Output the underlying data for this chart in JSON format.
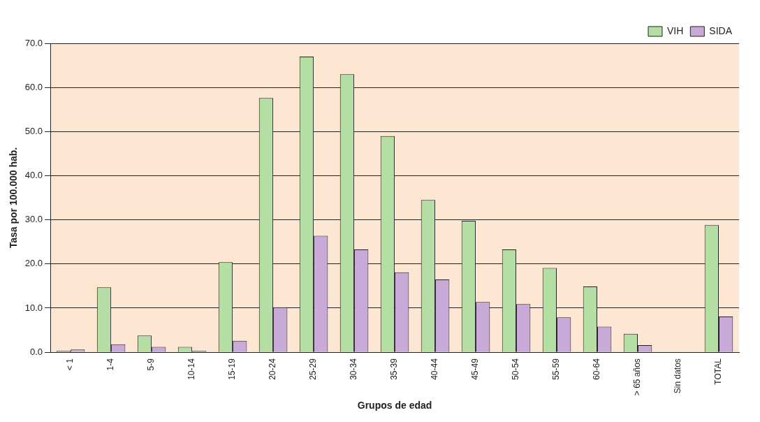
{
  "chart_data": {
    "type": "bar",
    "xlabel": "Grupos de edad",
    "ylabel": "Tasa por 100.000 hab.",
    "categories": [
      "< 1",
      "1-4",
      "5-9",
      "10-14",
      "15-19",
      "20-24",
      "25-29",
      "30-34",
      "35-39",
      "40-44",
      "45-49",
      "50-54",
      "55-59",
      "60-64",
      "> 65 años",
      "Sin datos",
      "TOTAL"
    ],
    "series": [
      {
        "name": "VIH",
        "color": "#b5dea4",
        "values": [
          0.3,
          14.7,
          3.8,
          1.2,
          20.4,
          57.6,
          67.0,
          63.0,
          49.0,
          34.5,
          29.8,
          23.3,
          19.1,
          14.9,
          4.2,
          null,
          28.8
        ]
      },
      {
        "name": "SIDA",
        "color": "#c8a9d8",
        "values": [
          0.6,
          1.8,
          1.2,
          0.3,
          2.6,
          10.2,
          26.4,
          23.3,
          18.1,
          16.5,
          11.4,
          10.9,
          7.9,
          5.8,
          1.6,
          null,
          8.1
        ]
      }
    ],
    "ylim": [
      0,
      70
    ],
    "yticks": [
      {
        "value": 0,
        "label": "0.0"
      },
      {
        "value": 10,
        "label": "10.0"
      },
      {
        "value": 20,
        "label": "20.0"
      },
      {
        "value": 30,
        "label": "30.0"
      },
      {
        "value": 40,
        "label": "40.0"
      },
      {
        "value": 50,
        "label": "50.0"
      },
      {
        "value": 60,
        "label": "60.0"
      },
      {
        "value": 70,
        "label": "70.0"
      }
    ],
    "grid": "y",
    "legend": "top right"
  }
}
